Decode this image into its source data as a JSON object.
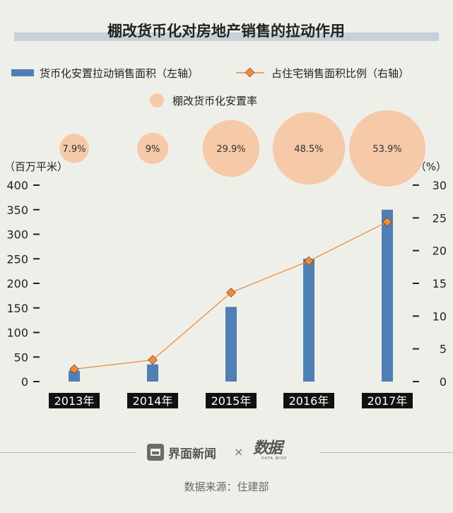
{
  "title": "棚改货币化对房地产销售的拉动作用",
  "legend": {
    "bar": "货币化安置拉动销售面积（左轴）",
    "line": "占住宅销售面积比例（右轴）",
    "bubble": "棚改货币化安置率"
  },
  "axis_units": {
    "left": "（百万平米）",
    "right": "（%）"
  },
  "footer": {
    "brand_left": "界面新闻",
    "separator": "×",
    "brand_right": "数据",
    "brand_right_sub": "DATA WISE",
    "source": "数据来源：住建部"
  },
  "colors": {
    "bar": "#4f7fb5",
    "line": "#ef8c3f",
    "marker": "#ef8c3f",
    "bubble": "#f6c9a8",
    "title_bar": "#c5d0d8",
    "label_bg": "#111111"
  },
  "chart_data": {
    "type": "bar",
    "categories": [
      "2013年",
      "2014年",
      "2015年",
      "2016年",
      "2017年"
    ],
    "series": [
      {
        "name": "货币化安置拉动销售面积（左轴）",
        "type": "bar",
        "axis": "left",
        "values": [
          22,
          35,
          152,
          250,
          350
        ]
      },
      {
        "name": "占住宅销售面积比例（右轴）",
        "type": "line",
        "axis": "right",
        "values": [
          1.9,
          3.3,
          13.6,
          18.4,
          24.4
        ]
      },
      {
        "name": "棚改货币化安置率",
        "type": "bubble",
        "values": [
          7.9,
          9,
          29.9,
          48.5,
          53.9
        ],
        "labels": [
          "7.9%",
          "9%",
          "29.9%",
          "48.5%",
          "53.9%"
        ]
      }
    ],
    "y_left": {
      "lim": [
        0,
        400
      ],
      "ticks": [
        0,
        50,
        100,
        150,
        200,
        250,
        300,
        350,
        400
      ]
    },
    "y_right": {
      "lim": [
        0,
        30
      ],
      "ticks": [
        0,
        5,
        10,
        15,
        20,
        25,
        30
      ]
    },
    "grid": false,
    "legend_position": "top"
  }
}
